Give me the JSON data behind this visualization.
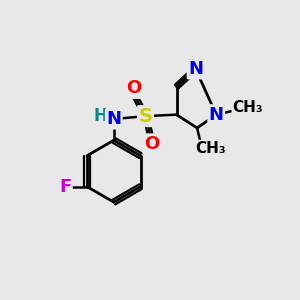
{
  "background_color": "#e8e8e8",
  "bond_color": "#000000",
  "atom_colors": {
    "N": "#0000ee",
    "O": "#ff0000",
    "S": "#cccc00",
    "F": "#cc00cc",
    "NH": "#008888",
    "H": "#008888",
    "C": "#000000"
  },
  "font_size_atoms": 13,
  "figsize": [
    3.0,
    3.0
  ],
  "dpi": 100
}
